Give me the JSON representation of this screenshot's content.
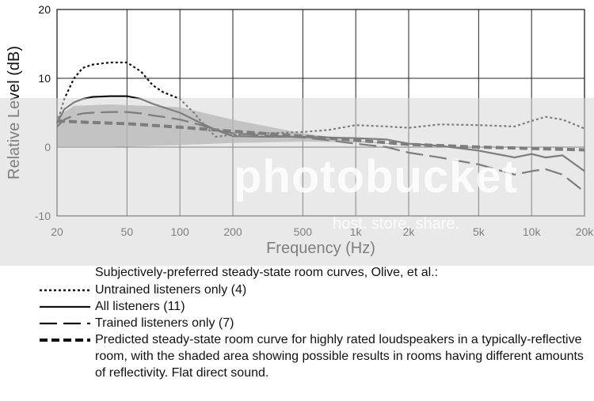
{
  "chart_data": {
    "type": "line",
    "xlabel": "Frequency (Hz)",
    "ylabel": "Relative Level (dB)",
    "x_scale": "log",
    "xlim": [
      20,
      20000
    ],
    "ylim": [
      -10,
      20
    ],
    "x_ticks": [
      20,
      50,
      100,
      200,
      500,
      1000,
      2000,
      5000,
      10000,
      20000
    ],
    "x_tick_labels": [
      "20",
      "50",
      "100",
      "200",
      "500",
      "1k",
      "2k",
      "5k",
      "10k",
      "20k"
    ],
    "y_ticks": [
      -10,
      0,
      10,
      20
    ],
    "y_tick_labels": [
      "-10",
      "0",
      "10",
      "20"
    ],
    "grid": true,
    "legend_header": "Subjectively-preferred steady-state room curves, Olive, et al.:",
    "series": [
      {
        "name": "Untrained listeners only (4)",
        "style": "dotted",
        "x": [
          20,
          22,
          25,
          28,
          32,
          40,
          50,
          60,
          70,
          80,
          100,
          120,
          140,
          160,
          200,
          300,
          500,
          700,
          1000,
          1500,
          2000,
          3000,
          5000,
          8000,
          10000,
          12000,
          15000,
          20000
        ],
        "y": [
          3.5,
          7,
          10,
          11.5,
          12,
          12.3,
          12.3,
          11,
          9,
          8,
          7,
          5,
          3,
          1.5,
          1.8,
          2,
          2.2,
          2.5,
          3.2,
          3,
          2.8,
          3.3,
          3.2,
          3,
          3.8,
          4.4,
          4,
          2.7
        ]
      },
      {
        "name": "All listeners (11)",
        "style": "solid",
        "x": [
          20,
          22,
          25,
          28,
          32,
          40,
          50,
          60,
          70,
          80,
          100,
          120,
          140,
          160,
          200,
          300,
          500,
          700,
          1000,
          1500,
          2000,
          3000,
          5000,
          8000,
          10000,
          12000,
          15000,
          20000
        ],
        "y": [
          3.5,
          5.5,
          6.5,
          7,
          7.3,
          7.4,
          7.4,
          7,
          6.3,
          5.8,
          5,
          4,
          3.2,
          2.5,
          1.6,
          1.5,
          1.5,
          1.4,
          1.3,
          1.1,
          0.5,
          0.2,
          -0.5,
          -1.5,
          -1,
          -1.5,
          -1.2,
          -3.5
        ]
      },
      {
        "name": "Trained listeners only (7)",
        "style": "long-dash",
        "x": [
          20,
          22,
          25,
          28,
          32,
          40,
          50,
          60,
          70,
          80,
          100,
          120,
          140,
          160,
          200,
          300,
          500,
          700,
          1000,
          1500,
          2000,
          3000,
          5000,
          8000,
          10000,
          12000,
          15000,
          20000
        ],
        "y": [
          3,
          4,
          4.6,
          4.9,
          5,
          5.1,
          5.1,
          4.9,
          4.6,
          4.4,
          4,
          3.5,
          3,
          2.5,
          2,
          1.7,
          1.4,
          1,
          0.5,
          0,
          -0.8,
          -1.5,
          -2.5,
          -4,
          -3.5,
          -3.2,
          -4,
          -6.5
        ]
      },
      {
        "name": "Predicted steady-state room curve for highly rated loudspeakers in a typically-reflective room, with the shaded area showing possible results in rooms having different amounts of reflectivity.  Flat direct sound.",
        "style": "heavy-dash",
        "x": [
          20,
          30,
          50,
          100,
          200,
          500,
          1000,
          2000,
          5000,
          10000,
          20000
        ],
        "y": [
          3.8,
          3.6,
          3.4,
          2.9,
          2.3,
          1.6,
          1.0,
          0.4,
          0.0,
          -0.2,
          -0.4
        ]
      }
    ],
    "shaded_band": {
      "x": [
        20,
        25,
        40,
        100,
        200,
        500,
        1000,
        2000
      ],
      "upper": [
        4.5,
        6.0,
        6.2,
        5.8,
        4.0,
        2.0,
        1.0,
        0.3
      ],
      "lower": [
        0.0,
        0.0,
        0.0,
        0.3,
        0.6,
        0.8,
        0.7,
        0.3
      ]
    }
  },
  "watermark": {
    "main": "photobucket",
    "tagline": "host. store. share."
  }
}
